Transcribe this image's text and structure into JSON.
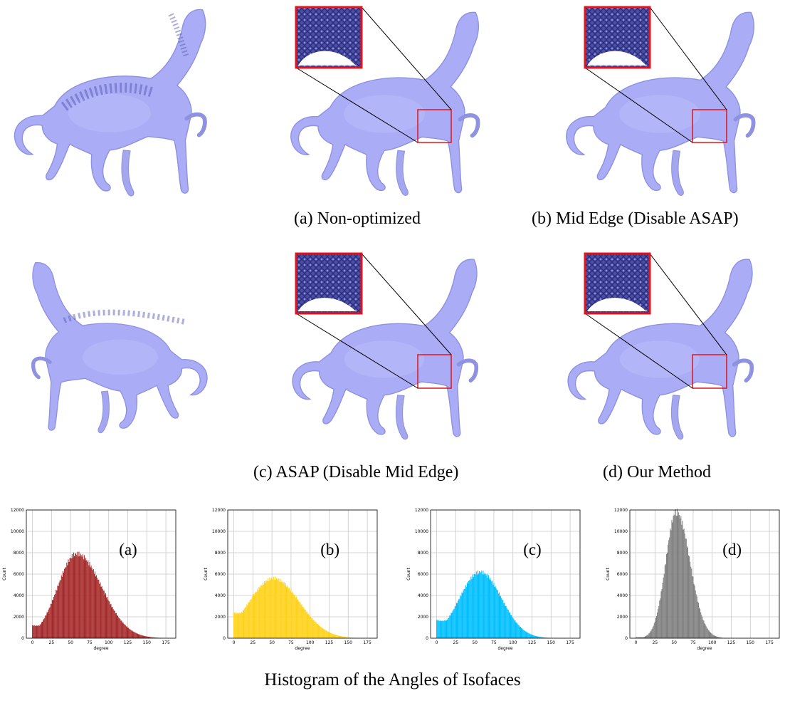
{
  "captions": {
    "a": "(a) Non-optimized",
    "b": "(b) Mid Edge (Disable ASAP)",
    "c": "(c) ASAP (Disable Mid Edge)",
    "d": "(d) Our Method"
  },
  "figure_title": "Histogram of the Angles of Isofaces",
  "colors": {
    "mesh": "#a9acf4",
    "mesh_dark": "#6f73c9",
    "zoom_box": "#e0141e",
    "inset": "#3a3d8f"
  },
  "chart_data": [
    {
      "type": "bar",
      "label": "(a)",
      "color": "#a52a2a",
      "xlabel": "degree",
      "ylabel": "Count",
      "xlim": [
        -8,
        188
      ],
      "ylim": [
        0,
        12000
      ],
      "xticks": [
        0,
        25,
        50,
        75,
        100,
        125,
        150,
        175
      ],
      "yticks": [
        0,
        2000,
        4000,
        6000,
        8000,
        10000,
        12000
      ],
      "grid": true,
      "mean": 58,
      "sd_left": 25,
      "sd_right": 33,
      "peak": 7900,
      "floor": 1200
    },
    {
      "type": "bar",
      "label": "(b)",
      "color": "#ffd21a",
      "xlabel": "degree",
      "ylabel": "Count",
      "xlim": [
        -8,
        188
      ],
      "ylim": [
        0,
        12000
      ],
      "xticks": [
        0,
        25,
        50,
        75,
        100,
        125,
        150,
        175
      ],
      "yticks": [
        0,
        2000,
        4000,
        6000,
        8000,
        10000,
        12000
      ],
      "grid": true,
      "mean": 52,
      "sd_left": 32,
      "sd_right": 34,
      "peak": 5600,
      "floor": 2400
    },
    {
      "type": "bar",
      "label": "(c)",
      "color": "#00bfff",
      "xlabel": "degree",
      "ylabel": "Count",
      "xlim": [
        -8,
        188
      ],
      "ylim": [
        0,
        12000
      ],
      "xticks": [
        0,
        25,
        50,
        75,
        100,
        125,
        150,
        175
      ],
      "yticks": [
        0,
        2000,
        4000,
        6000,
        8000,
        10000,
        12000
      ],
      "grid": true,
      "mean": 57,
      "sd_left": 27,
      "sd_right": 28,
      "peak": 6200,
      "floor": 1700
    },
    {
      "type": "bar",
      "label": "(d)",
      "color": "#808080",
      "xlabel": "degree",
      "ylabel": "Count",
      "xlim": [
        -8,
        188
      ],
      "ylim": [
        0,
        12000
      ],
      "xticks": [
        0,
        25,
        50,
        75,
        100,
        125,
        150,
        175
      ],
      "yticks": [
        0,
        2000,
        4000,
        6000,
        8000,
        10000,
        12000
      ],
      "grid": true,
      "mean": 53,
      "sd_left": 14,
      "sd_right": 18,
      "peak": 11800,
      "floor": 100
    }
  ]
}
